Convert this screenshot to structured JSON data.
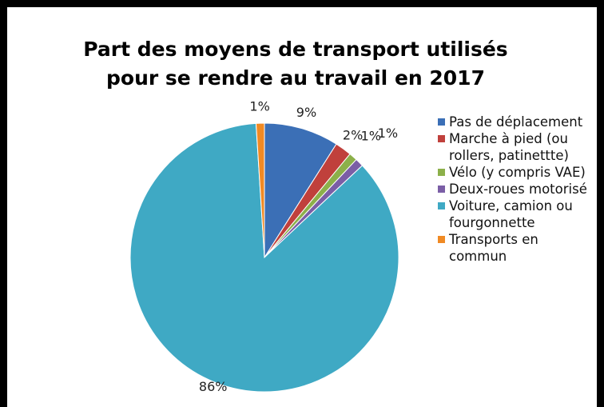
{
  "chart_data": {
    "type": "pie",
    "title": [
      "Part des moyens de transport utilisés",
      "pour se rendre au travail en 2017"
    ],
    "categories": [
      "Pas de déplacement",
      "Marche à pied (ou rollers, patinettte)",
      "Vélo (y compris VAE)",
      "Deux-roues motorisé",
      "Voiture, camion ou fourgonnette",
      "Transports en commun"
    ],
    "values": [
      9,
      2,
      1,
      1,
      86,
      1
    ],
    "value_labels": [
      "9%",
      "2%",
      "1%",
      "1%",
      "86%",
      "1%"
    ],
    "colors": [
      "#3b6fb6",
      "#c0403c",
      "#8cb04a",
      "#7b5ea6",
      "#3fa9c4",
      "#f08a24"
    ],
    "legend": "right"
  }
}
